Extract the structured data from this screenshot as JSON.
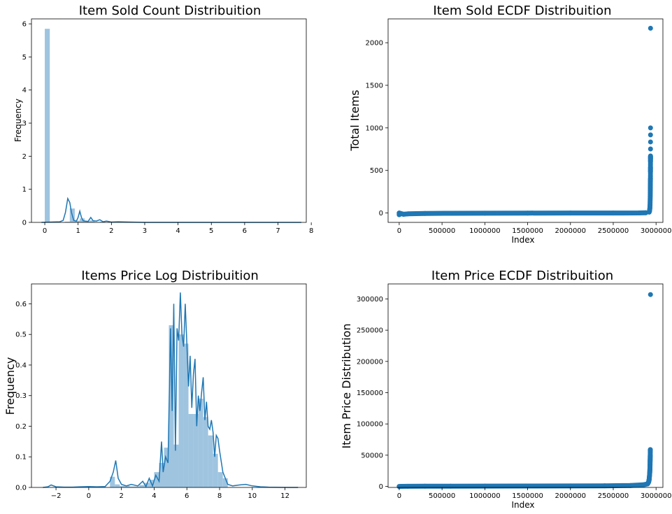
{
  "chart_data": [
    {
      "type": "bar",
      "title": "Item Sold Count Distribuition",
      "xlabel": "",
      "ylabel": "Frequency",
      "xlim": [
        -0.4,
        7.85
      ],
      "ylim": [
        0,
        6.15
      ],
      "xticks": [
        "0",
        "1",
        "2",
        "3",
        "4",
        "5",
        "6",
        "7",
        "8"
      ],
      "yticks": [
        "0",
        "1",
        "2",
        "3",
        "4",
        "5",
        "6"
      ],
      "bins": {
        "edges": [
          0.0,
          0.15,
          0.3,
          0.45,
          0.6,
          0.75,
          0.9,
          1.05,
          1.2,
          1.35,
          1.5,
          1.65,
          1.8,
          1.95,
          2.1
        ],
        "values": [
          5.85,
          0,
          0,
          0,
          0.02,
          0.42,
          0.05,
          0.12,
          0.04,
          0.06,
          0.01,
          0.02,
          0.01,
          0.01
        ]
      },
      "kde": {
        "x": [
          -0.1,
          0.2,
          0.45,
          0.55,
          0.62,
          0.69,
          0.75,
          0.8,
          0.87,
          0.95,
          1.0,
          1.05,
          1.1,
          1.15,
          1.2,
          1.3,
          1.38,
          1.45,
          1.55,
          1.65,
          1.75,
          1.85,
          2.0,
          2.2,
          2.5,
          3.0,
          4.0,
          5.0,
          6.0,
          7.0,
          7.7
        ],
        "y": [
          0,
          0.01,
          0.02,
          0.06,
          0.3,
          0.72,
          0.6,
          0.3,
          0.06,
          0.04,
          0.15,
          0.34,
          0.15,
          0.05,
          0.04,
          0.03,
          0.15,
          0.05,
          0.04,
          0.08,
          0.02,
          0.04,
          0.01,
          0.02,
          0.01,
          0,
          0,
          0,
          0,
          0,
          0
        ]
      }
    },
    {
      "type": "scatter",
      "title": "Item Sold ECDF Distribuition",
      "xlabel": "Index",
      "ylabel": "Total Items",
      "xlim": [
        -130000,
        3080000
      ],
      "ylim": [
        -110,
        2280
      ],
      "xticks": [
        "0",
        "500000",
        "1000000",
        "1500000",
        "2000000",
        "2500000",
        "3000000"
      ],
      "yticks": [
        "0",
        "500",
        "1000",
        "1500",
        "2000"
      ],
      "points": [
        [
          0,
          -20
        ],
        [
          0,
          0
        ],
        [
          50000,
          -15
        ],
        [
          100000,
          -10
        ],
        [
          300000,
          -5
        ],
        [
          600000,
          -3
        ],
        [
          1000000,
          -2
        ],
        [
          1500000,
          -1
        ],
        [
          2000000,
          0
        ],
        [
          2500000,
          0
        ],
        [
          2800000,
          1
        ],
        [
          2880000,
          3
        ],
        [
          2920000,
          10
        ],
        [
          2925000,
          30
        ],
        [
          2928000,
          60
        ],
        [
          2930000,
          100
        ],
        [
          2931000,
          150
        ],
        [
          2932000,
          200
        ],
        [
          2932500,
          250
        ],
        [
          2933000,
          300
        ],
        [
          2933500,
          340
        ],
        [
          2934000,
          380
        ],
        [
          2934500,
          410
        ],
        [
          2934700,
          480
        ],
        [
          2934800,
          510
        ],
        [
          2934900,
          540
        ],
        [
          2935000,
          600
        ],
        [
          2935100,
          630
        ],
        [
          2935200,
          650
        ],
        [
          2935300,
          670
        ],
        [
          2935400,
          1000
        ],
        [
          2935500,
          2170
        ]
      ]
    },
    {
      "type": "bar",
      "title": "Items Price Log Distribuition",
      "xlabel": "",
      "ylabel": "Frequency",
      "xlim": [
        -3.5,
        13.3
      ],
      "ylim": [
        0,
        0.665
      ],
      "xticks": [
        "−2",
        "0",
        "2",
        "4",
        "6",
        "8",
        "10",
        "12"
      ],
      "yticks": [
        "0.0",
        "0.1",
        "0.2",
        "0.3",
        "0.4",
        "0.5",
        "0.6"
      ],
      "bins": {
        "edges": [
          1.3,
          1.6,
          1.9,
          2.2,
          2.5,
          2.8,
          3.1,
          3.4,
          3.7,
          4.0,
          4.3,
          4.6,
          4.9,
          5.2,
          5.5,
          5.8,
          6.1,
          6.4,
          6.7,
          7.0,
          7.3,
          7.6,
          7.9,
          8.2,
          8.5
        ],
        "values": [
          0.035,
          0.01,
          0.005,
          0.005,
          0.003,
          0.003,
          0.008,
          0.015,
          0.025,
          0.05,
          0.08,
          0.13,
          0.53,
          0.14,
          0.5,
          0.47,
          0.24,
          0.24,
          0.29,
          0.23,
          0.17,
          0.11,
          0.05,
          0.03
        ]
      },
      "kde": {
        "x": [
          -2.8,
          -2.5,
          -2.3,
          -2.0,
          -1.5,
          -1.0,
          -0.5,
          0,
          0.5,
          1.0,
          1.3,
          1.5,
          1.65,
          1.8,
          2.0,
          2.3,
          2.6,
          3.0,
          3.3,
          3.5,
          3.7,
          3.9,
          4.1,
          4.3,
          4.45,
          4.55,
          4.7,
          4.85,
          5.0,
          5.1,
          5.2,
          5.3,
          5.4,
          5.5,
          5.6,
          5.7,
          5.8,
          5.9,
          6.0,
          6.1,
          6.2,
          6.3,
          6.4,
          6.5,
          6.6,
          6.7,
          6.8,
          6.9,
          7.0,
          7.1,
          7.2,
          7.3,
          7.4,
          7.5,
          7.6,
          7.7,
          7.8,
          7.9,
          8.0,
          8.2,
          8.5,
          8.8,
          9.2,
          9.6,
          10.0,
          10.5,
          11,
          12,
          12.8
        ],
        "y": [
          0,
          0.002,
          0.008,
          0.002,
          0.001,
          0.001,
          0.002,
          0.003,
          0.002,
          0.003,
          0.02,
          0.05,
          0.088,
          0.03,
          0.01,
          0.005,
          0.01,
          0.005,
          0.02,
          0.003,
          0.03,
          0.005,
          0.04,
          0.02,
          0.15,
          0.05,
          0.1,
          0.08,
          0.52,
          0.25,
          0.6,
          0.12,
          0.52,
          0.48,
          0.637,
          0.5,
          0.46,
          0.6,
          0.47,
          0.33,
          0.43,
          0.26,
          0.37,
          0.42,
          0.2,
          0.3,
          0.25,
          0.31,
          0.36,
          0.22,
          0.28,
          0.2,
          0.19,
          0.22,
          0.18,
          0.1,
          0.17,
          0.16,
          0.12,
          0.05,
          0.01,
          0.005,
          0.008,
          0.01,
          0.005,
          0.002,
          0.001,
          0,
          0
        ]
      }
    },
    {
      "type": "scatter",
      "title": "Item Price ECDF Distribuition",
      "xlabel": "Index",
      "ylabel": "Item Price Distribution",
      "xlim": [
        -130000,
        3080000
      ],
      "ylim": [
        -1600,
        324000
      ],
      "xticks": [
        "0",
        "500000",
        "1000000",
        "1500000",
        "2000000",
        "2500000",
        "3000000"
      ],
      "yticks": [
        "0",
        "50000",
        "100000",
        "150000",
        "200000",
        "250000",
        "300000"
      ],
      "points": [
        [
          0,
          -100
        ],
        [
          20000,
          100
        ],
        [
          100000,
          200
        ],
        [
          300000,
          300
        ],
        [
          600000,
          400
        ],
        [
          1000000,
          500
        ],
        [
          1500000,
          600
        ],
        [
          2000000,
          800
        ],
        [
          2400000,
          1000
        ],
        [
          2700000,
          1500
        ],
        [
          2850000,
          2500
        ],
        [
          2900000,
          4000
        ],
        [
          2910000,
          6000
        ],
        [
          2915000,
          8000
        ],
        [
          2918000,
          10000
        ],
        [
          2920000,
          12000
        ],
        [
          2922000,
          15000
        ],
        [
          2924000,
          18000
        ],
        [
          2926000,
          21000
        ],
        [
          2927000,
          24000
        ],
        [
          2928000,
          27000
        ],
        [
          2929000,
          30000
        ],
        [
          2929500,
          33000
        ],
        [
          2930000,
          36000
        ],
        [
          2930500,
          40000
        ],
        [
          2931000,
          43000
        ],
        [
          2931500,
          47000
        ],
        [
          2932000,
          50000
        ],
        [
          2932500,
          57000
        ],
        [
          2933000,
          59000
        ],
        [
          2935000,
          307000
        ]
      ]
    }
  ]
}
